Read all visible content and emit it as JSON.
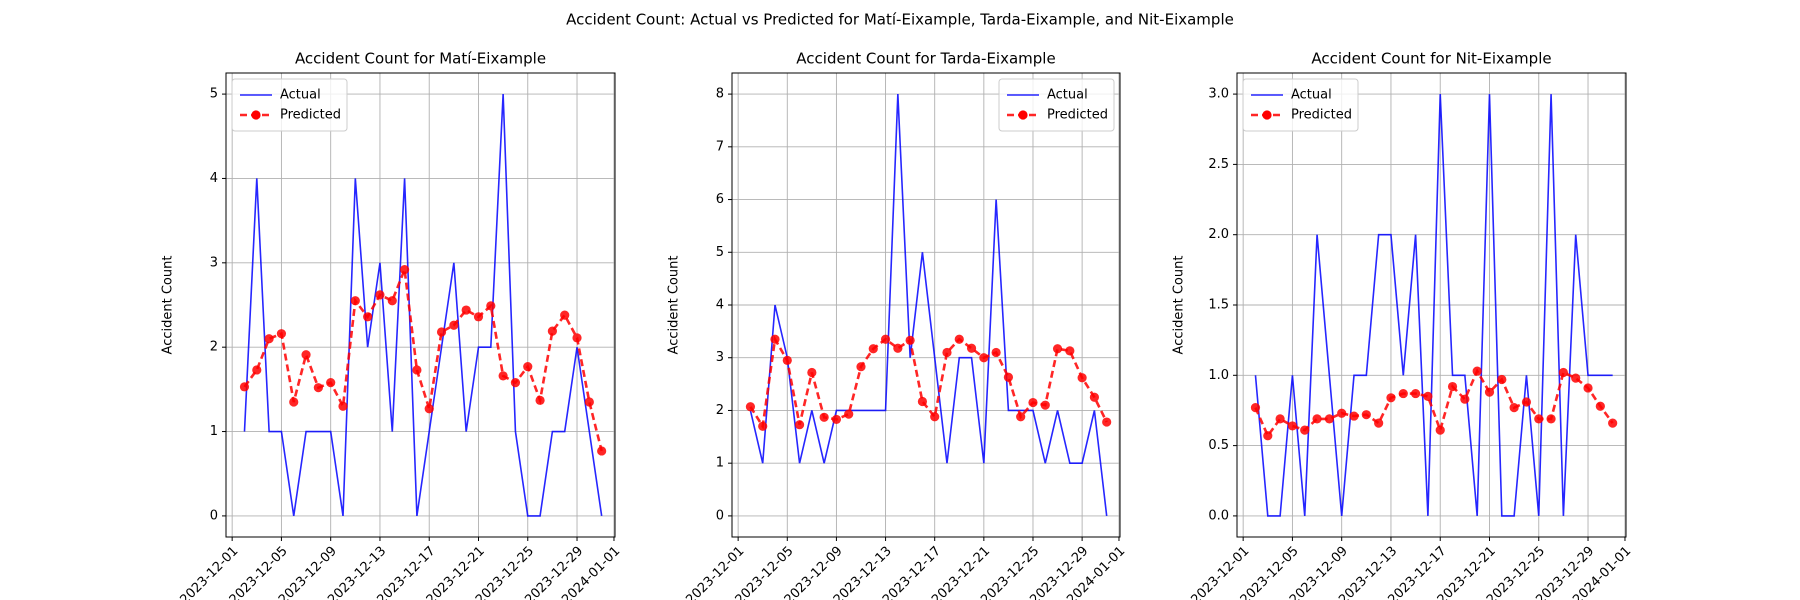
{
  "title": "Accident Count: Actual vs Predicted for Matí-Eixample, Tarda-Eixample, and Nit-Eixample",
  "chart_data": [
    {
      "type": "line",
      "title": "Accident Count for Matí-Eixample",
      "ylabel": "Accident Count",
      "x": [
        "2023-12-02",
        "2023-12-03",
        "2023-12-04",
        "2023-12-05",
        "2023-12-06",
        "2023-12-07",
        "2023-12-08",
        "2023-12-09",
        "2023-12-10",
        "2023-12-11",
        "2023-12-12",
        "2023-12-13",
        "2023-12-14",
        "2023-12-15",
        "2023-12-16",
        "2023-12-17",
        "2023-12-18",
        "2023-12-19",
        "2023-12-20",
        "2023-12-21",
        "2023-12-22",
        "2023-12-23",
        "2023-12-24",
        "2023-12-25",
        "2023-12-26",
        "2023-12-27",
        "2023-12-28",
        "2023-12-29",
        "2023-12-30",
        "2023-12-31"
      ],
      "series": [
        {
          "name": "Actual",
          "color": "#0000ff",
          "style": "solid",
          "values": [
            1,
            4,
            1,
            1,
            0,
            1,
            1,
            1,
            0,
            4,
            2,
            3,
            1,
            4,
            0,
            1,
            2,
            3,
            1,
            2,
            2,
            5,
            1,
            0,
            0,
            1,
            1,
            2,
            1,
            0
          ]
        },
        {
          "name": "Predicted",
          "color": "#ff0000",
          "style": "dashed-marker",
          "values": [
            1.53,
            1.73,
            2.1,
            2.16,
            1.35,
            1.91,
            1.52,
            1.58,
            1.3,
            2.55,
            2.36,
            2.62,
            2.55,
            2.92,
            1.73,
            1.27,
            2.18,
            2.26,
            2.44,
            2.36,
            2.49,
            1.66,
            1.58,
            1.77,
            1.37,
            2.19,
            2.38,
            2.11,
            1.35,
            0.77
          ]
        }
      ],
      "xlim": [
        "2023-11-30T12:00Z",
        "2024-01-01T02:00Z"
      ],
      "xticks": [
        "2023-12-01",
        "2023-12-05",
        "2023-12-09",
        "2023-12-13",
        "2023-12-17",
        "2023-12-21",
        "2023-12-25",
        "2023-12-29",
        "2024-01-01"
      ],
      "ylim": [
        -0.25,
        5.25
      ],
      "yticks": [
        0,
        1,
        2,
        3,
        4,
        5
      ],
      "grid": true,
      "legend": "upper-left"
    },
    {
      "type": "line",
      "title": "Accident Count for Tarda-Eixample",
      "ylabel": "Accident Count",
      "x": [
        "2023-12-02",
        "2023-12-03",
        "2023-12-04",
        "2023-12-05",
        "2023-12-06",
        "2023-12-07",
        "2023-12-08",
        "2023-12-09",
        "2023-12-10",
        "2023-12-11",
        "2023-12-12",
        "2023-12-13",
        "2023-12-14",
        "2023-12-15",
        "2023-12-16",
        "2023-12-17",
        "2023-12-18",
        "2023-12-19",
        "2023-12-20",
        "2023-12-21",
        "2023-12-22",
        "2023-12-23",
        "2023-12-24",
        "2023-12-25",
        "2023-12-26",
        "2023-12-27",
        "2023-12-28",
        "2023-12-29",
        "2023-12-30",
        "2023-12-31"
      ],
      "series": [
        {
          "name": "Actual",
          "color": "#0000ff",
          "style": "solid",
          "values": [
            2,
            1,
            4,
            3,
            1,
            2,
            1,
            2,
            2,
            2,
            2,
            2,
            8,
            3,
            5,
            3,
            1,
            3,
            3,
            1,
            6,
            2,
            2,
            2,
            1,
            2,
            1,
            1,
            2,
            0
          ]
        },
        {
          "name": "Predicted",
          "color": "#ff0000",
          "style": "dashed-marker",
          "values": [
            2.07,
            1.7,
            3.35,
            2.95,
            1.73,
            2.72,
            1.87,
            1.83,
            1.93,
            2.83,
            3.17,
            3.35,
            3.18,
            3.33,
            2.17,
            1.88,
            3.1,
            3.35,
            3.18,
            3.0,
            3.1,
            2.63,
            1.88,
            2.15,
            2.1,
            3.17,
            3.13,
            2.62,
            2.25,
            1.78
          ]
        }
      ],
      "xlim": [
        "2023-11-30T12:00Z",
        "2024-01-01T02:00Z"
      ],
      "xticks": [
        "2023-12-01",
        "2023-12-05",
        "2023-12-09",
        "2023-12-13",
        "2023-12-17",
        "2023-12-21",
        "2023-12-25",
        "2023-12-29",
        "2024-01-01"
      ],
      "ylim": [
        -0.4,
        8.4
      ],
      "yticks": [
        0,
        1,
        2,
        3,
        4,
        5,
        6,
        7,
        8
      ],
      "grid": true,
      "legend": "upper-right"
    },
    {
      "type": "line",
      "title": "Accident Count for Nit-Eixample",
      "ylabel": "Accident Count",
      "x": [
        "2023-12-02",
        "2023-12-03",
        "2023-12-04",
        "2023-12-05",
        "2023-12-06",
        "2023-12-07",
        "2023-12-08",
        "2023-12-09",
        "2023-12-10",
        "2023-12-11",
        "2023-12-12",
        "2023-12-13",
        "2023-12-14",
        "2023-12-15",
        "2023-12-16",
        "2023-12-17",
        "2023-12-18",
        "2023-12-19",
        "2023-12-20",
        "2023-12-21",
        "2023-12-22",
        "2023-12-23",
        "2023-12-24",
        "2023-12-25",
        "2023-12-26",
        "2023-12-27",
        "2023-12-28",
        "2023-12-29",
        "2023-12-30",
        "2023-12-31"
      ],
      "series": [
        {
          "name": "Actual",
          "color": "#0000ff",
          "style": "solid",
          "values": [
            1,
            0,
            0,
            1,
            0,
            2,
            1,
            0,
            1,
            1,
            2,
            2,
            1,
            2,
            0,
            3,
            1,
            1,
            0,
            3,
            0,
            0,
            1,
            0,
            3,
            0,
            2,
            1,
            1,
            1
          ]
        },
        {
          "name": "Predicted",
          "color": "#ff0000",
          "style": "dashed-marker",
          "values": [
            0.77,
            0.57,
            0.69,
            0.64,
            0.61,
            0.69,
            0.69,
            0.73,
            0.71,
            0.72,
            0.66,
            0.84,
            0.87,
            0.87,
            0.85,
            0.61,
            0.92,
            0.83,
            1.03,
            0.88,
            0.97,
            0.77,
            0.81,
            0.69,
            0.69,
            1.02,
            0.98,
            0.91,
            0.78,
            0.66
          ]
        }
      ],
      "xlim": [
        "2023-11-30T12:00Z",
        "2024-01-01T02:00Z"
      ],
      "xticks": [
        "2023-12-01",
        "2023-12-05",
        "2023-12-09",
        "2023-12-13",
        "2023-12-17",
        "2023-12-21",
        "2023-12-25",
        "2023-12-29",
        "2024-01-01"
      ],
      "ylim": [
        -0.15,
        3.15
      ],
      "yticks": [
        {
          "value": 0,
          "label": "0.0"
        },
        0.5,
        {
          "value": 1,
          "label": "1.0"
        },
        1.5,
        {
          "value": 2,
          "label": "2.0"
        },
        2.5,
        {
          "value": 3,
          "label": "3.0"
        }
      ],
      "grid": true,
      "legend": "upper-left"
    }
  ]
}
